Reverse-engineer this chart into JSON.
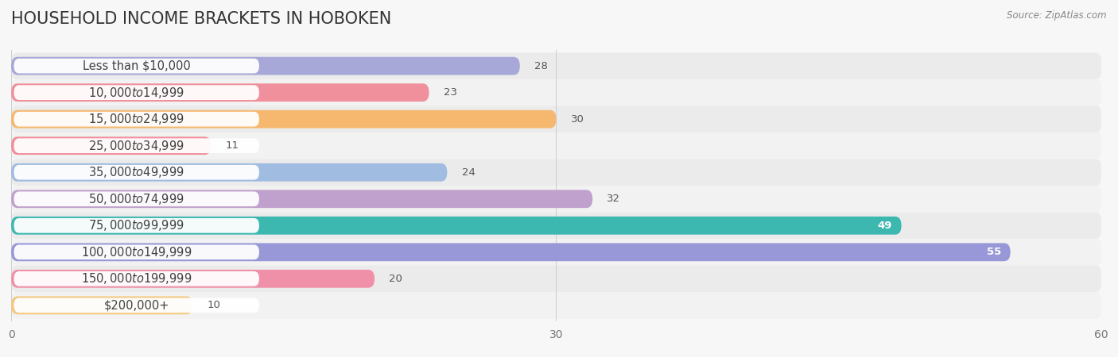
{
  "title": "HOUSEHOLD INCOME BRACKETS IN HOBOKEN",
  "source": "Source: ZipAtlas.com",
  "categories": [
    "Less than $10,000",
    "$10,000 to $14,999",
    "$15,000 to $24,999",
    "$25,000 to $34,999",
    "$35,000 to $49,999",
    "$50,000 to $74,999",
    "$75,000 to $99,999",
    "$100,000 to $149,999",
    "$150,000 to $199,999",
    "$200,000+"
  ],
  "values": [
    28,
    23,
    30,
    11,
    24,
    32,
    49,
    55,
    20,
    10
  ],
  "bar_colors": [
    "#a8a8d8",
    "#f0909c",
    "#f5b86e",
    "#f0909c",
    "#a0bce0",
    "#c0a0cc",
    "#3cb8b0",
    "#9898d8",
    "#f090a8",
    "#f5c880"
  ],
  "bg_color": "#f7f7f7",
  "row_bg_color": "#ebebeb",
  "row_bg_color2": "#f2f2f2",
  "xlim": [
    0,
    60
  ],
  "xticks": [
    0,
    30,
    60
  ],
  "title_fontsize": 15,
  "label_fontsize": 10.5,
  "value_fontsize": 9.5,
  "bar_height": 0.68,
  "row_padding": 0.16
}
